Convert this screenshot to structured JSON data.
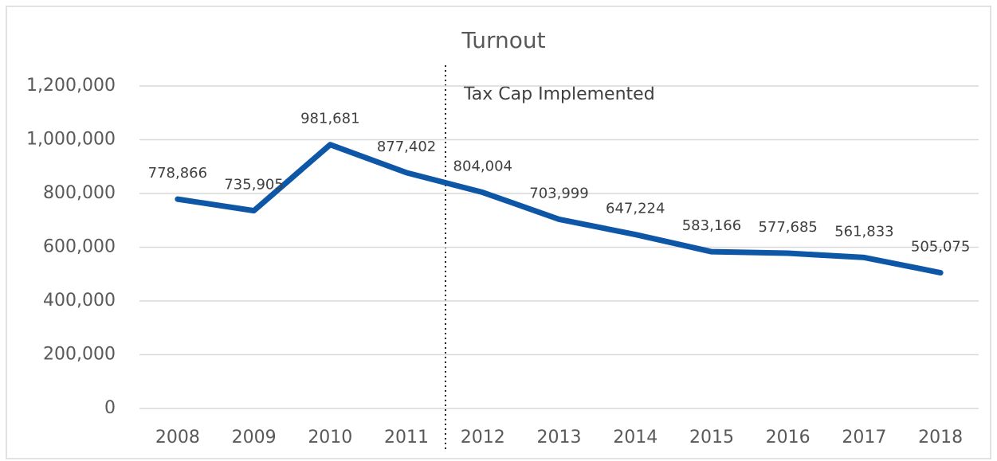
{
  "chart_data": {
    "type": "line",
    "title": "Turnout",
    "annotation": "Tax Cap Implemented",
    "categories": [
      "2008",
      "2009",
      "2010",
      "2011",
      "2012",
      "2013",
      "2014",
      "2015",
      "2016",
      "2017",
      "2018"
    ],
    "values": [
      778866,
      735905,
      981681,
      877402,
      804004,
      703999,
      647224,
      583166,
      577685,
      561833,
      505075
    ],
    "value_labels": [
      "778,866",
      "735,905",
      "981,681",
      "877,402",
      "804,004",
      "703,999",
      "647,224",
      "583,166",
      "577,685",
      "561,833",
      "505,075"
    ],
    "color": "#0d57a6",
    "ylim": [
      0,
      1200000
    ],
    "yticks": [
      0,
      {
        "value": 200000,
        "label": "200,000"
      },
      {
        "value": 400000,
        "label": "400,000"
      },
      {
        "value": 600000,
        "label": "600,000"
      },
      {
        "value": 800000,
        "label": "800,000"
      },
      {
        "value": 1000000,
        "label": "1,000,000"
      },
      {
        "value": 1200000,
        "label": "1,200,000"
      }
    ],
    "grid": true
  }
}
